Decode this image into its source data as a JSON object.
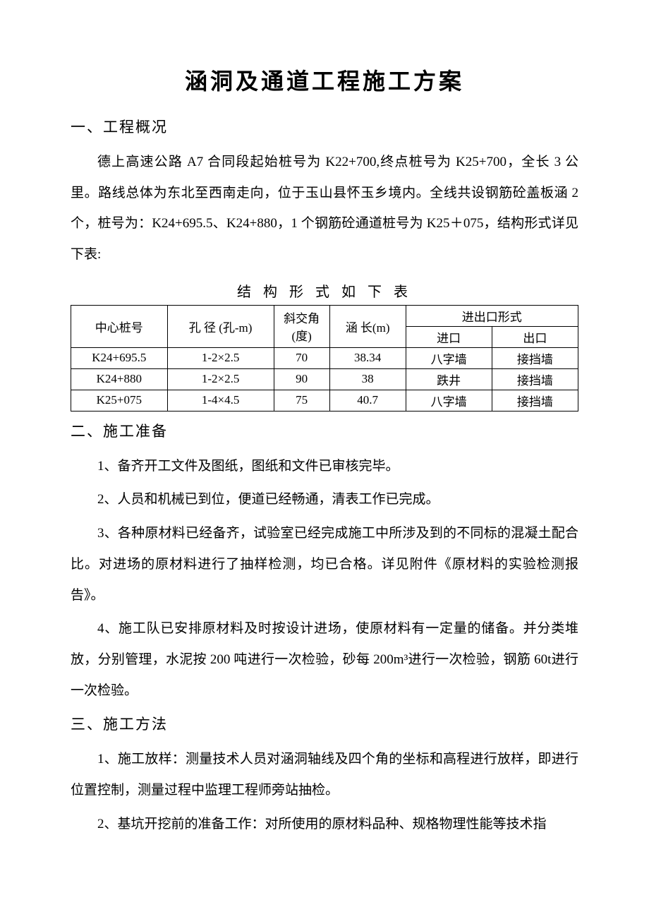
{
  "title": "涵洞及通道工程施工方案",
  "section1": {
    "heading": "一、工程概况",
    "p1": "德上高速公路 A7 合同段起始桩号为 K22+700,终点桩号为 K25+700，全长 3 公里。路线总体为东北至西南走向，位于玉山县怀玉乡境内。全线共设钢筋砼盖板涵 2个，桩号为：K24+695.5、K24+880，1 个钢筋砼通道桩号为 K25＋075，结构形式详见下表:"
  },
  "table": {
    "caption": "结 构 形 式 如 下 表",
    "head": {
      "c0": "中心桩号",
      "c1": "孔 径 (孔-m)",
      "c2": "斜交角(度)",
      "c3": "涵 长(m)",
      "c4merged": "进出口形式",
      "c4": "进口",
      "c5": "出口"
    },
    "rows": [
      {
        "c0": "K24+695.5",
        "c1": "1-2×2.5",
        "c2": "70",
        "c3": "38.34",
        "c4": "八字墙",
        "c5": "接挡墙"
      },
      {
        "c0": "K24+880",
        "c1": "1-2×2.5",
        "c2": "90",
        "c3": "38",
        "c4": "跌井",
        "c5": "接挡墙"
      },
      {
        "c0": "K25+075",
        "c1": "1-4×4.5",
        "c2": "75",
        "c3": "40.7",
        "c4": "八字墙",
        "c5": "接挡墙"
      }
    ]
  },
  "section2": {
    "heading": "二、施工准备",
    "p1": "1、备齐开工文件及图纸，图纸和文件已审核完毕。",
    "p2": "2、人员和机械已到位，便道已经畅通，清表工作已完成。",
    "p3": "3、各种原材料已经备齐，试验室已经完成施工中所涉及到的不同标的混凝土配合比。对进场的原材料进行了抽样检测，均已合格。详见附件《原材料的实验检测报告》。",
    "p4": "4、施工队已安排原材料及时按设计进场，使原材料有一定量的储备。并分类堆放，分别管理，水泥按 200 吨进行一次检验，砂每 200m³进行一次检验，钢筋 60t进行一次检验。"
  },
  "section3": {
    "heading": "三、施工方法",
    "p1": "1、施工放样：测量技术人员对涵洞轴线及四个角的坐标和高程进行放样，即进行位置控制，测量过程中监理工程师旁站抽检。",
    "p2": "2、基坑开挖前的准备工作：对所使用的原材料品种、规格物理性能等技术指"
  }
}
